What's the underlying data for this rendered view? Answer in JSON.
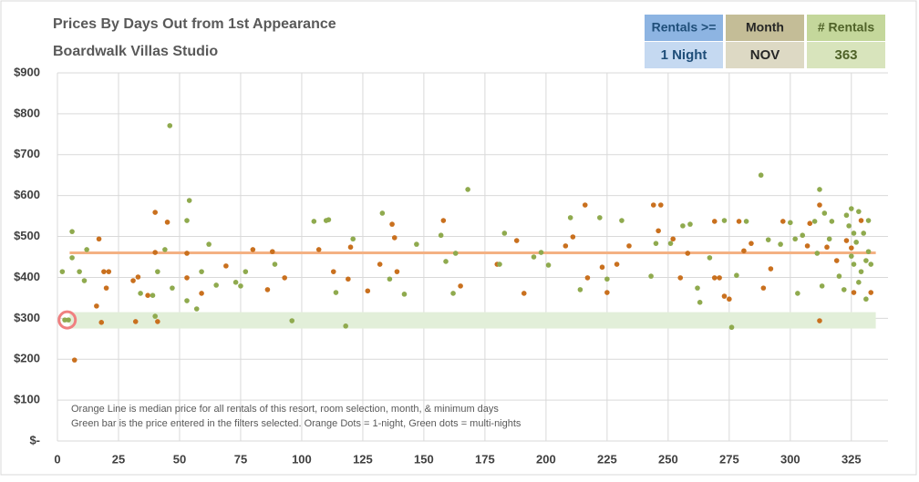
{
  "chart_data": {
    "type": "scatter",
    "title": "Prices By Days Out from 1st Appearance",
    "subtitle": "Boardwalk Villas Studio",
    "notes": [
      "Orange Line is median price for all rentals of this resort, room selection, month, & minimum days",
      "Green bar is the price entered in the filters selected. Orange Dots = 1-night, Green dots = multi-nights"
    ],
    "xlim": [
      0,
      340
    ],
    "xticks": [
      0,
      25,
      50,
      75,
      100,
      125,
      150,
      175,
      200,
      225,
      250,
      275,
      300,
      325
    ],
    "ylim": [
      0,
      900
    ],
    "yticks": [
      {
        "value": 0,
        "label": "$-"
      },
      {
        "value": 100,
        "label": "$100"
      },
      {
        "value": 200,
        "label": "$200"
      },
      {
        "value": 300,
        "label": "$300"
      },
      {
        "value": 400,
        "label": "$400"
      },
      {
        "value": 500,
        "label": "$500"
      },
      {
        "value": 600,
        "label": "$600"
      },
      {
        "value": 700,
        "label": "$700"
      },
      {
        "value": 800,
        "label": "$800"
      },
      {
        "value": 900,
        "label": "$900"
      }
    ],
    "grid": true,
    "median_line": {
      "value": 460,
      "x": [
        5,
        335
      ],
      "color": "#f4b183"
    },
    "price_band": {
      "low": 275,
      "high": 315,
      "x": [
        5,
        335
      ],
      "color": "#e2efd9"
    },
    "highlight": {
      "x": 4,
      "value": 296,
      "color": "#f08080"
    },
    "series": [
      {
        "color": "#c9701e",
        "x": [
          7,
          17,
          16,
          18,
          19,
          20,
          21,
          31,
          32,
          33,
          37,
          40,
          40,
          41,
          45,
          53,
          53,
          59,
          69,
          80,
          86,
          88,
          93,
          107,
          113,
          119,
          120,
          127,
          132,
          137,
          138,
          139,
          158,
          165,
          180,
          188,
          191,
          208,
          211,
          216,
          217,
          223,
          225,
          229,
          234,
          244,
          247,
          246,
          252,
          255,
          258,
          269,
          269,
          271,
          273,
          275,
          279,
          281,
          284,
          289,
          292,
          297,
          307,
          308,
          312,
          315,
          312,
          319,
          323,
          325,
          326,
          329,
          333
        ],
        "values": [
          198,
          494,
          330,
          290,
          414,
          374,
          414,
          392,
          292,
          401,
          356,
          559,
          461,
          292,
          535,
          459,
          399,
          361,
          428,
          468,
          370,
          463,
          399,
          468,
          414,
          396,
          474,
          367,
          432,
          530,
          497,
          414,
          539,
          379,
          432,
          490,
          361,
          477,
          499,
          577,
          399,
          425,
          363,
          432,
          477,
          577,
          577,
          514,
          494,
          399,
          459,
          399,
          537,
          399,
          354,
          347,
          537,
          465,
          483,
          374,
          421,
          537,
          477,
          532,
          294,
          474,
          577,
          441,
          490,
          472,
          363,
          539,
          363
        ]
      },
      {
        "color": "#8faa4e",
        "x": [
          4.5,
          3,
          2,
          6,
          6,
          9,
          12,
          11,
          34,
          41,
          40,
          39,
          44,
          46,
          47,
          53,
          54,
          53,
          57,
          59,
          62,
          65,
          73,
          77,
          75,
          89,
          96,
          105,
          110,
          111,
          114,
          118,
          121,
          133,
          136,
          142,
          147,
          157,
          159,
          162,
          163,
          168,
          181,
          183,
          195,
          198,
          201,
          210,
          214,
          222,
          225,
          231,
          243,
          245,
          251,
          256,
          259,
          262,
          263,
          267,
          273,
          276,
          278,
          282,
          288,
          291,
          296,
          300,
          302,
          303,
          305,
          310,
          311,
          313,
          312,
          314,
          316,
          317,
          320,
          322,
          323,
          324,
          325,
          326,
          326,
          327,
          328,
          329,
          330,
          331,
          332,
          332,
          333,
          331,
          328,
          325
        ],
        "values": [
          296,
          296,
          414,
          512,
          448,
          414,
          468,
          392,
          361,
          414,
          305,
          356,
          468,
          771,
          374,
          539,
          588,
          343,
          323,
          414,
          481,
          381,
          388,
          414,
          379,
          432,
          294,
          537,
          539,
          541,
          363,
          281,
          494,
          557,
          396,
          359,
          481,
          503,
          439,
          361,
          459,
          615,
          432,
          508,
          450,
          461,
          430,
          546,
          370,
          546,
          396,
          539,
          403,
          483,
          483,
          526,
          530,
          374,
          339,
          448,
          539,
          278,
          405,
          537,
          650,
          492,
          481,
          534,
          494,
          361,
          503,
          537,
          459,
          379,
          615,
          557,
          494,
          537,
          403,
          370,
          552,
          526,
          568,
          508,
          432,
          486,
          388,
          414,
          508,
          441,
          463,
          539,
          432,
          347,
          561,
          452
        ]
      }
    ]
  },
  "filters": [
    {
      "label": "Rentals >=",
      "value": "1 Night"
    },
    {
      "label": "Month",
      "value": "NOV"
    },
    {
      "label": "# Rentals",
      "value": "363"
    }
  ]
}
